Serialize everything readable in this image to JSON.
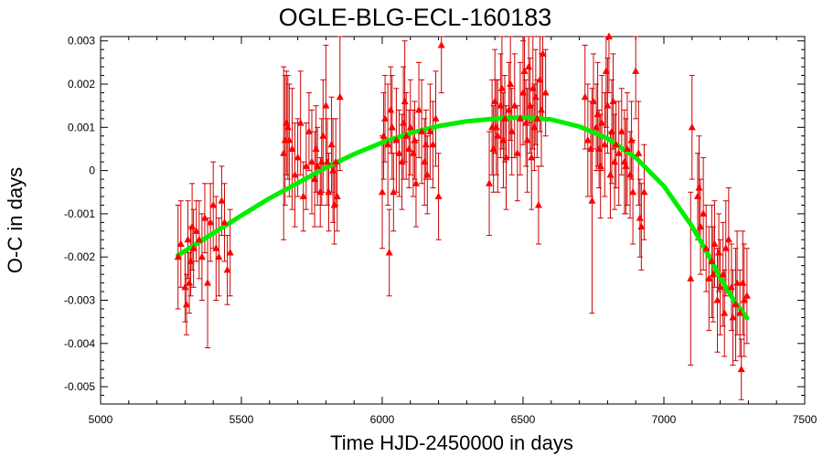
{
  "chart_data": {
    "type": "scatter",
    "title": "OGLE-BLG-ECL-160183",
    "xlabel": "Time HJD-2450000 in days",
    "ylabel": "O-C in days",
    "xlim": [
      5000,
      7500
    ],
    "ylim": [
      -0.0054,
      0.0031
    ],
    "x_ticks": [
      "5000",
      "5500",
      "6000",
      "6500",
      "7000",
      "7500"
    ],
    "y_ticks": [
      "-0.005",
      "-0.004",
      "-0.003",
      "-0.002",
      "-0.001",
      "0",
      "0.001",
      "0.002",
      "0.003"
    ],
    "x_tick_values": [
      5000,
      5500,
      6000,
      6500,
      7000,
      7500
    ],
    "y_tick_values": [
      -0.005,
      -0.004,
      -0.003,
      -0.002,
      -0.001,
      0,
      0.001,
      0.002,
      0.003
    ],
    "grid": false,
    "legend": "none",
    "colors": {
      "points": "#ff0000",
      "error_bars": "#cc0000",
      "fit": "#00ee00"
    },
    "series": [
      {
        "kind": "points_with_error_bars",
        "points": [
          [
            5275,
            -0.002,
            0.0012
          ],
          [
            5285,
            -0.0017,
            0.001
          ],
          [
            5300,
            -0.0027,
            0.0008
          ],
          [
            5305,
            -0.0031,
            0.0007
          ],
          [
            5310,
            -0.0016,
            0.0009
          ],
          [
            5315,
            -0.0026,
            0.0007
          ],
          [
            5320,
            -0.0021,
            0.0008
          ],
          [
            5325,
            -0.0013,
            0.001
          ],
          [
            5330,
            -0.0018,
            0.0009
          ],
          [
            5340,
            -0.0014,
            0.0007
          ],
          [
            5350,
            -0.0016,
            0.0009
          ],
          [
            5360,
            -0.002,
            0.001
          ],
          [
            5370,
            -0.0011,
            0.0008
          ],
          [
            5380,
            -0.0026,
            0.0015
          ],
          [
            5390,
            -0.0012,
            0.0009
          ],
          [
            5400,
            -0.0008,
            0.001
          ],
          [
            5410,
            -0.0018,
            0.0012
          ],
          [
            5420,
            -0.002,
            0.0009
          ],
          [
            5430,
            -0.0007,
            0.0008
          ],
          [
            5440,
            -0.0012,
            0.0009
          ],
          [
            5450,
            -0.0023,
            0.0008
          ],
          [
            5460,
            -0.0019,
            0.001
          ],
          [
            5650,
            0.0004,
            0.002
          ],
          [
            5655,
            0.0007,
            0.0015
          ],
          [
            5660,
            0.0011,
            0.0012
          ],
          [
            5665,
            0.001,
            0.0012
          ],
          [
            5670,
            0.0007,
            0.0013
          ],
          [
            5680,
            0.0005,
            0.0014
          ],
          [
            5690,
            -0.0001,
            0.0012
          ],
          [
            5700,
            0.0003,
            0.0009
          ],
          [
            5710,
            0.0011,
            0.0012
          ],
          [
            5720,
            -0.0006,
            0.0008
          ],
          [
            5730,
            0.0001,
            0.001
          ],
          [
            5740,
            0.0009,
            0.0009
          ],
          [
            5750,
            0.0002,
            0.0012
          ],
          [
            5760,
            -0.0002,
            0.0011
          ],
          [
            5765,
            0.0005,
            0.001
          ],
          [
            5770,
            0.0001,
            0.0009
          ],
          [
            5780,
            -0.0005,
            0.0008
          ],
          [
            5785,
            0.0002,
            0.001
          ],
          [
            5790,
            0.0008,
            0.0013
          ],
          [
            5800,
            0.0015,
            0.0014
          ],
          [
            5805,
            0.0002,
            0.001
          ],
          [
            5810,
            -0.0005,
            0.0009
          ],
          [
            5820,
            0.0006,
            0.0011
          ],
          [
            5825,
            0.0,
            0.0012
          ],
          [
            5830,
            -0.0008,
            0.0009
          ],
          [
            5835,
            0.0002,
            0.001
          ],
          [
            5840,
            -0.0006,
            0.0008
          ],
          [
            5850,
            0.0017,
            0.0017
          ],
          [
            6000,
            -0.0005,
            0.0013
          ],
          [
            6005,
            0.0008,
            0.001
          ],
          [
            6010,
            0.0012,
            0.001
          ],
          [
            6020,
            0.0006,
            0.0014
          ],
          [
            6025,
            -0.0019,
            0.001
          ],
          [
            6030,
            0.0014,
            0.001
          ],
          [
            6035,
            0.001,
            0.0012
          ],
          [
            6040,
            -0.0005,
            0.0009
          ],
          [
            6050,
            0.0007,
            0.0012
          ],
          [
            6060,
            0.0004,
            0.001
          ],
          [
            6070,
            0.0002,
            0.0011
          ],
          [
            6075,
            0.0011,
            0.0013
          ],
          [
            6080,
            0.0016,
            0.0014
          ],
          [
            6085,
            0.0008,
            0.001
          ],
          [
            6095,
            0.0005,
            0.0009
          ],
          [
            6100,
            0.001,
            0.0011
          ],
          [
            6110,
            0.0004,
            0.001
          ],
          [
            6115,
            0.0007,
            0.0009
          ],
          [
            6120,
            -0.0003,
            0.001
          ],
          [
            6130,
            0.0014,
            0.0011
          ],
          [
            6140,
            0.0009,
            0.0012
          ],
          [
            6150,
            0.0002,
            0.001
          ],
          [
            6155,
            0.0006,
            0.0008
          ],
          [
            6160,
            -0.0001,
            0.0009
          ],
          [
            6170,
            0.0009,
            0.0011
          ],
          [
            6180,
            0.0006,
            0.001
          ],
          [
            6190,
            0.0012,
            0.0011
          ],
          [
            6200,
            -0.0006,
            0.001
          ],
          [
            6210,
            0.0029,
            0.0011
          ],
          [
            6380,
            -0.0003,
            0.0012
          ],
          [
            6390,
            0.001,
            0.0011
          ],
          [
            6395,
            0.0005,
            0.001
          ],
          [
            6400,
            0.0016,
            0.0012
          ],
          [
            6405,
            0.001,
            0.0011
          ],
          [
            6410,
            0.0008,
            0.0013
          ],
          [
            6420,
            0.0015,
            0.0012
          ],
          [
            6425,
            0.0019,
            0.0014
          ],
          [
            6430,
            0.0007,
            0.0011
          ],
          [
            6435,
            0.0012,
            0.001
          ],
          [
            6440,
            0.0003,
            0.0012
          ],
          [
            6450,
            0.0014,
            0.0011
          ],
          [
            6455,
            0.002,
            0.0013
          ],
          [
            6460,
            0.0009,
            0.001
          ],
          [
            6470,
            0.0015,
            0.0012
          ],
          [
            6480,
            0.0004,
            0.0011
          ],
          [
            6490,
            0.0012,
            0.0013
          ],
          [
            6500,
            0.0018,
            0.0012
          ],
          [
            6505,
            0.0023,
            0.0011
          ],
          [
            6510,
            0.0011,
            0.001
          ],
          [
            6515,
            0.0007,
            0.0012
          ],
          [
            6520,
            0.0024,
            0.0013
          ],
          [
            6525,
            0.0015,
            0.0011
          ],
          [
            6530,
            0.0003,
            0.0012
          ],
          [
            6535,
            0.0019,
            0.0014
          ],
          [
            6540,
            0.001,
            0.001
          ],
          [
            6545,
            0.0017,
            0.0011
          ],
          [
            6550,
            0.0012,
            0.0009
          ],
          [
            6555,
            -0.0008,
            0.0009
          ],
          [
            6560,
            0.0021,
            0.0012
          ],
          [
            6565,
            0.0014,
            0.0013
          ],
          [
            6570,
            0.0027,
            0.0015
          ],
          [
            6580,
            0.0018,
            0.001
          ],
          [
            6720,
            0.0017,
            0.0012
          ],
          [
            6730,
            0.0007,
            0.0013
          ],
          [
            6740,
            0.0005,
            0.0011
          ],
          [
            6745,
            -0.0007,
            0.0026
          ],
          [
            6750,
            0.0016,
            0.0011
          ],
          [
            6760,
            0.001,
            0.001
          ],
          [
            6765,
            0.0013,
            0.0012
          ],
          [
            6770,
            0.0005,
            0.0009
          ],
          [
            6775,
            0.0001,
            0.0012
          ],
          [
            6780,
            0.0011,
            0.0011
          ],
          [
            6790,
            0.0006,
            0.0012
          ],
          [
            6795,
            0.0023,
            0.0013
          ],
          [
            6800,
            0.0015,
            0.0011
          ],
          [
            6805,
            0.0031,
            0.0013
          ],
          [
            6810,
            -0.0001,
            0.001
          ],
          [
            6815,
            0.0009,
            0.0012
          ],
          [
            6820,
            0.0016,
            0.0011
          ],
          [
            6825,
            0.0002,
            0.0011
          ],
          [
            6830,
            0.0006,
            0.001
          ],
          [
            6840,
            0.0004,
            0.0012
          ],
          [
            6850,
            0.0009,
            0.001
          ],
          [
            6860,
            0.0002,
            0.0012
          ],
          [
            6865,
            0.0001,
            0.0011
          ],
          [
            6870,
            0.0005,
            0.0013
          ],
          [
            6880,
            -0.0001,
            0.001
          ],
          [
            6885,
            0.0007,
            0.0009
          ],
          [
            6890,
            -0.0005,
            0.0012
          ],
          [
            6900,
            0.0023,
            0.0011
          ],
          [
            6910,
            0.0004,
            0.0012
          ],
          [
            6915,
            -0.0011,
            0.0009
          ],
          [
            6920,
            -0.0013,
            0.001
          ],
          [
            6930,
            -0.0005,
            0.0011
          ],
          [
            7095,
            -0.0025,
            0.002
          ],
          [
            7100,
            0.001,
            0.0012
          ],
          [
            7120,
            -0.0006,
            0.001
          ],
          [
            7125,
            -0.0004,
            0.0012
          ],
          [
            7130,
            -0.0013,
            0.0011
          ],
          [
            7140,
            -0.001,
            0.0013
          ],
          [
            7150,
            -0.0018,
            0.001
          ],
          [
            7160,
            -0.0025,
            0.0012
          ],
          [
            7170,
            -0.0021,
            0.0013
          ],
          [
            7175,
            -0.0024,
            0.0011
          ],
          [
            7180,
            -0.0017,
            0.001
          ],
          [
            7190,
            -0.003,
            0.0012
          ],
          [
            7195,
            -0.0019,
            0.0009
          ],
          [
            7200,
            -0.0027,
            0.0011
          ],
          [
            7210,
            -0.0024,
            0.0012
          ],
          [
            7215,
            -0.0033,
            0.001
          ],
          [
            7220,
            -0.0018,
            0.0011
          ],
          [
            7230,
            -0.0016,
            0.0012
          ],
          [
            7240,
            -0.0027,
            0.001
          ],
          [
            7245,
            -0.0034,
            0.0011
          ],
          [
            7255,
            -0.0031,
            0.0013
          ],
          [
            7260,
            -0.0026,
            0.0012
          ],
          [
            7270,
            -0.0033,
            0.001
          ],
          [
            7275,
            -0.0046,
            0.0007
          ],
          [
            7280,
            -0.0026,
            0.0012
          ],
          [
            7285,
            -0.003,
            0.0013
          ],
          [
            7295,
            -0.0029,
            0.0011
          ]
        ]
      },
      {
        "kind": "fit_curve",
        "points": [
          [
            5275,
            -0.00196
          ],
          [
            5400,
            -0.00145
          ],
          [
            5500,
            -0.00104
          ],
          [
            5600,
            -0.00064
          ],
          [
            5700,
            -0.00029
          ],
          [
            5800,
            7e-05
          ],
          [
            5900,
            0.00038
          ],
          [
            6000,
            0.00065
          ],
          [
            6100,
            0.00087
          ],
          [
            6200,
            0.00103
          ],
          [
            6300,
            0.00114
          ],
          [
            6400,
            0.0012
          ],
          [
            6500,
            0.00123
          ],
          [
            6600,
            0.00118
          ],
          [
            6700,
            0.00102
          ],
          [
            6800,
            0.00074
          ],
          [
            6900,
            0.0003
          ],
          [
            7000,
            -0.00036
          ],
          [
            7100,
            -0.00129
          ],
          [
            7150,
            -0.00186
          ],
          [
            7200,
            -0.00248
          ],
          [
            7250,
            -0.00302
          ],
          [
            7295,
            -0.00341
          ]
        ]
      }
    ]
  }
}
